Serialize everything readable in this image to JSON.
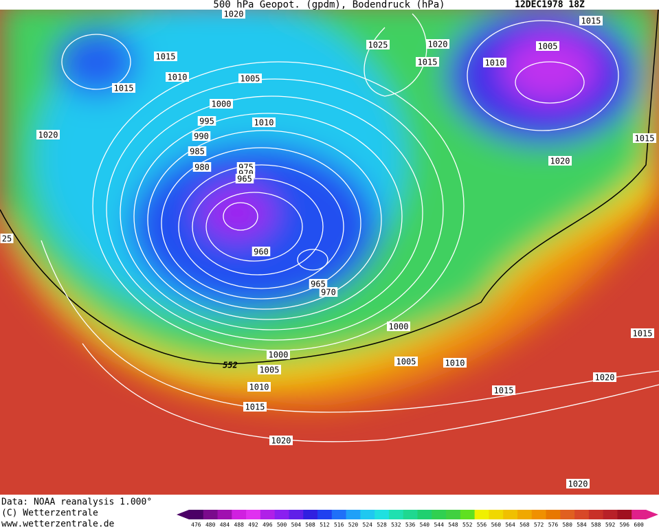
{
  "title": "500 hPa Geopot. (gpdm), Bodendruck (hPa)",
  "date": "12DEC1978 18Z",
  "isobar_labels": [
    "1020",
    "1015",
    "1025",
    "1020",
    "1005",
    "1015",
    "1010",
    "1015",
    "1010",
    "1015",
    "1005",
    "1000",
    "995",
    "1010",
    "990",
    "1020",
    "1015",
    "985",
    "980",
    "975",
    "970",
    "965",
    "1020",
    "25",
    "960",
    "965",
    "970",
    "1000",
    "1015",
    "1000",
    "1005",
    "1010",
    "1005",
    "1020",
    "1010",
    "1015",
    "1015",
    "1020",
    "1020"
  ],
  "contour_label": "552",
  "footer": [
    "Data: NOAA reanalysis 1.000°",
    "(C) Wetterzentrale",
    "www.wetterzentrale.de"
  ],
  "colorbar": {
    "levels": [
      476,
      480,
      484,
      488,
      492,
      496,
      500,
      504,
      508,
      512,
      516,
      520,
      524,
      528,
      532,
      536,
      540,
      544,
      548,
      552,
      556,
      560,
      564,
      568,
      572,
      576,
      580,
      584,
      588,
      592,
      596,
      600
    ],
    "colors": [
      "#4b0066",
      "#7a0a8c",
      "#a010b0",
      "#d020e0",
      "#e030f0",
      "#b020e8",
      "#8a20f0",
      "#6020e8",
      "#3020e0",
      "#2040f0",
      "#2070f8",
      "#20a0f8",
      "#20c8f0",
      "#20e0e0",
      "#20e0b0",
      "#20d890",
      "#20d070",
      "#30d050",
      "#40d040",
      "#60e020",
      "#f0f000",
      "#f0d800",
      "#f0c000",
      "#f0a800",
      "#f09000",
      "#e87800",
      "#e06020",
      "#d84828",
      "#c83028",
      "#b82028",
      "#a01020",
      "#e0208a"
    ]
  }
}
